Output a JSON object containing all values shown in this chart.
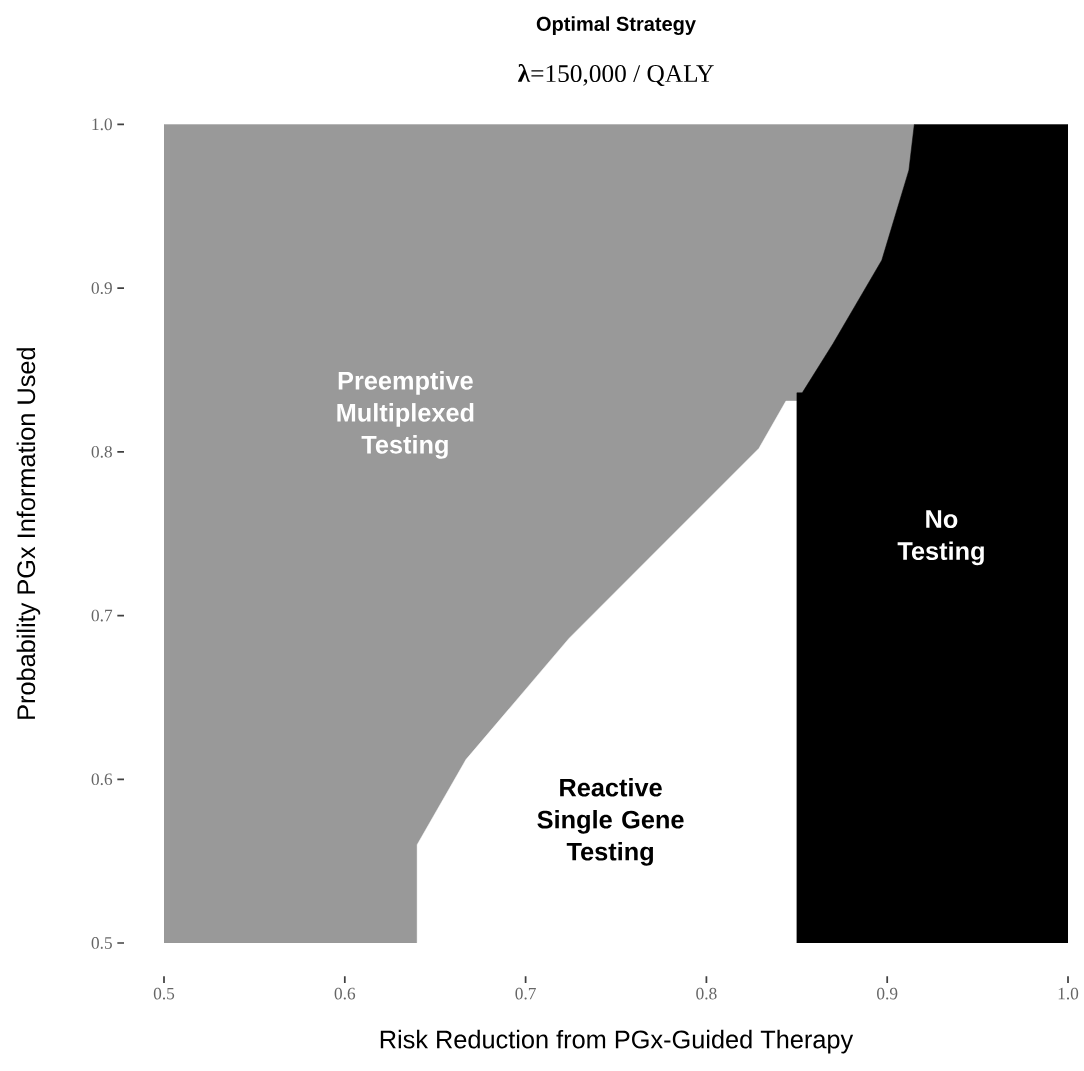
{
  "chart_data": {
    "type": "area",
    "title": "Optimal Strategy",
    "subtitle": "**λ**=150,000 / QALY",
    "xlabel": "Risk Reduction from PGx-Guided Therapy",
    "ylabel": "Probability PGx Information Used",
    "xlim": [
      0.5,
      1.0
    ],
    "ylim": [
      0.5,
      1.0
    ],
    "xticks": [
      0.5,
      0.6,
      0.7,
      0.8,
      0.9,
      {
        "value": 1.0,
        "label": "1.0"
      }
    ],
    "yticks": [
      0.5,
      0.6,
      0.7,
      0.8,
      0.9,
      {
        "value": 1.0,
        "label": "1.0"
      }
    ],
    "series": [
      {
        "name": "Preemptive Multiplexed Testing",
        "color": "#999999",
        "x": [
          0.5,
          0.915
        ],
        "values": [
          1.0,
          1.0
        ]
      },
      {
        "name": "Reactive Single Gene Testing",
        "color": "#ffffff",
        "x": [
          0.64,
          0.64,
          0.667,
          0.724,
          0.781,
          0.829,
          0.844,
          0.85
        ],
        "values": [
          0.5,
          0.56,
          0.612,
          0.686,
          0.749,
          0.802,
          0.831,
          0.831
        ]
      },
      {
        "name": "No Testing",
        "color": "#000000",
        "x": [
          0.85,
          0.853,
          0.87,
          0.897,
          0.912,
          0.915,
          1.0
        ],
        "values": [
          0.836,
          0.836,
          0.866,
          0.917,
          0.972,
          1.0,
          1.0
        ]
      }
    ]
  }
}
